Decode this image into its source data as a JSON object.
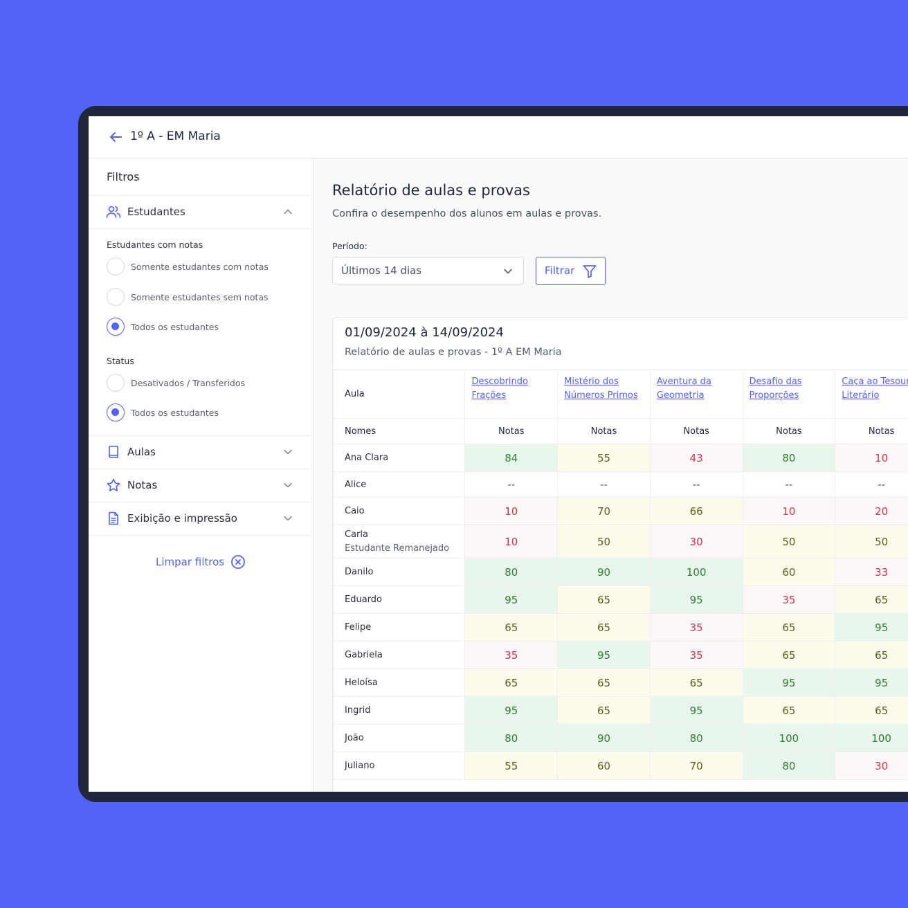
{
  "header": {
    "title": "1º A - EM Maria"
  },
  "sidebar": {
    "title": "Filtros",
    "students_section": {
      "label": "Estudantes",
      "group1_label": "Estudantes com notas",
      "group1_options": [
        "Somente estudantes com notas",
        "Somente estudantes sem notas",
        "Todos os estudantes"
      ],
      "group1_selected": "Todos os estudantes",
      "group2_label": "Status",
      "group2_options": [
        "Desativados / Transferidos",
        "Todos os estudantes"
      ],
      "group2_selected": "Todos os estudantes"
    },
    "sections": [
      "Aulas",
      "Notas",
      "Exibição e impressão"
    ],
    "clear_label": "Limpar filtros"
  },
  "main": {
    "title": "Relatório de aulas e provas",
    "subtitle": "Confira o desempenho dos alunos em aulas e provas.",
    "period_label": "Período:",
    "period_value": "Últimos 14 dias",
    "filter_label": "Filtrar"
  },
  "report": {
    "date_range": "01/09/2024 à 14/09/2024",
    "subtitle": "Relatório de aulas e provas - 1º A EM Maria",
    "aula_header": "Aula",
    "names_header": "Nomes",
    "grades_header": "Notas",
    "lessons": [
      "Descobrindo Frações",
      "Mistério dos Números Primos",
      "Aventura da Geometria",
      "Desafio das Proporções",
      "Caça ao Tesouro Literário"
    ],
    "rows": [
      {
        "name": "Ana Clara",
        "sub": "",
        "grades": [
          "84",
          "55",
          "43",
          "80",
          "10"
        ]
      },
      {
        "name": "Alice",
        "sub": "",
        "grades": [
          "--",
          "--",
          "--",
          "--",
          "--"
        ]
      },
      {
        "name": "Caio",
        "sub": "",
        "grades": [
          "10",
          "70",
          "66",
          "10",
          "20"
        ]
      },
      {
        "name": "Carla",
        "sub": "Estudante Remanejado",
        "grades": [
          "10",
          "50",
          "30",
          "50",
          "50"
        ]
      },
      {
        "name": "Danilo",
        "sub": "",
        "grades": [
          "80",
          "90",
          "100",
          "60",
          "33"
        ]
      },
      {
        "name": "Eduardo",
        "sub": "",
        "grades": [
          "95",
          "65",
          "95",
          "35",
          "65"
        ]
      },
      {
        "name": "Felipe",
        "sub": "",
        "grades": [
          "65",
          "65",
          "35",
          "65",
          "95"
        ]
      },
      {
        "name": "Gabriela",
        "sub": "",
        "grades": [
          "35",
          "95",
          "35",
          "65",
          "65"
        ]
      },
      {
        "name": "Heloísa",
        "sub": "",
        "grades": [
          "65",
          "65",
          "65",
          "95",
          "95"
        ]
      },
      {
        "name": "Ingrid",
        "sub": "",
        "grades": [
          "95",
          "65",
          "95",
          "65",
          "65"
        ]
      },
      {
        "name": "João",
        "sub": "",
        "grades": [
          "80",
          "90",
          "80",
          "100",
          "100"
        ]
      },
      {
        "name": "Juliano",
        "sub": "",
        "grades": [
          "55",
          "60",
          "70",
          "80",
          "30"
        ]
      }
    ]
  },
  "colors": {
    "accent": "#5262f7",
    "background": "#5262f7",
    "good": "#2e7d32",
    "medium": "#5b5e1e",
    "bad": "#d1344b"
  }
}
